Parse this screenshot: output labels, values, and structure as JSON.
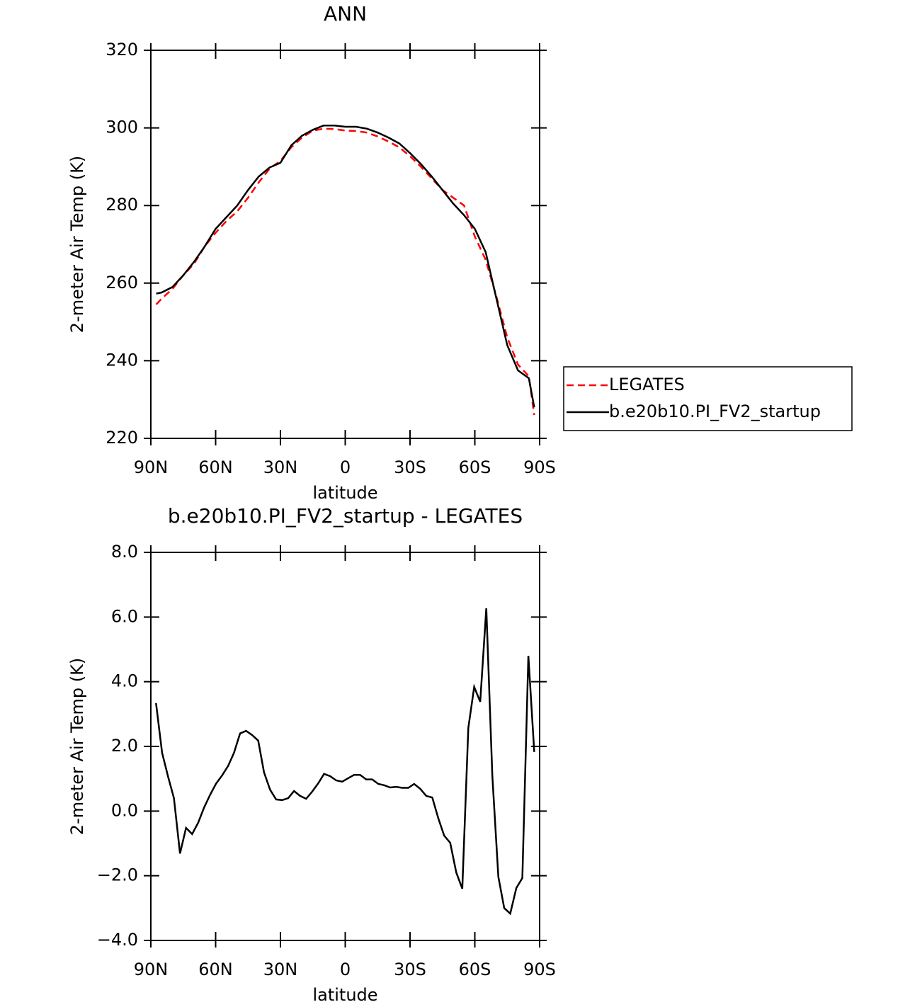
{
  "chart_data": [
    {
      "type": "line",
      "title": "ANN",
      "x_label": "latitude",
      "y_label": "2-meter Air Temp (K)",
      "x": [
        87.5,
        85,
        80,
        75,
        70,
        65,
        60,
        55,
        50,
        45,
        40,
        35,
        30,
        25,
        20,
        15,
        10,
        5,
        0,
        -5,
        -10,
        -15,
        -20,
        -25,
        -30,
        -35,
        -40,
        -45,
        -50,
        -55,
        -60,
        -65,
        -70,
        -75,
        -80,
        -85,
        -87.5
      ],
      "xlim": [
        90,
        -90
      ],
      "xticks": [
        {
          "value": 90,
          "label": "90N"
        },
        {
          "value": 60,
          "label": "60N"
        },
        {
          "value": 30,
          "label": "30N"
        },
        0,
        {
          "value": -30,
          "label": "30S"
        },
        {
          "value": -60,
          "label": "60S"
        },
        {
          "value": -90,
          "label": "90S"
        }
      ],
      "ylim": [
        220,
        320
      ],
      "yticks": [
        220,
        240,
        260,
        280,
        300,
        320
      ],
      "legend": "right",
      "series": [
        {
          "name": "LEGATES",
          "color": "#ff0000",
          "line_style": "dashed",
          "values": [
            254.5,
            256,
            258.5,
            262,
            265,
            269.5,
            273,
            276,
            278.5,
            282,
            286,
            289.5,
            291.5,
            295,
            297.5,
            299.3,
            299.8,
            299.7,
            299.3,
            299.2,
            298.8,
            297.8,
            296.5,
            295,
            292.7,
            290,
            287,
            284,
            282,
            280,
            272,
            266,
            256.5,
            246,
            239,
            236,
            226
          ]
        },
        {
          "name": "b.e20b10.PI_FV2_startup",
          "color": "#000000",
          "line_style": "solid",
          "values": [
            257.3,
            257.6,
            259,
            262,
            265.5,
            269.5,
            274,
            277,
            280,
            284,
            287.5,
            289.8,
            291,
            295.5,
            298,
            299.5,
            300.6,
            300.6,
            300.3,
            300.3,
            299.8,
            298.8,
            297.5,
            296,
            293.5,
            290.7,
            287.5,
            284,
            280.5,
            277.5,
            274,
            268,
            256,
            244,
            237.5,
            235.5,
            228
          ]
        }
      ]
    },
    {
      "type": "line",
      "title": "b.e20b10.PI_FV2_startup - LEGATES",
      "x_label": "latitude",
      "y_label": "2-meter Air Temp (K)",
      "x": [
        87.6,
        84.8,
        82.0,
        79.3,
        76.5,
        73.7,
        70.9,
        68.1,
        65.4,
        62.6,
        59.8,
        57.0,
        54.2,
        51.5,
        48.7,
        45.9,
        43.1,
        40.3,
        37.6,
        34.8,
        32.0,
        29.2,
        26.4,
        23.7,
        20.9,
        18.1,
        15.3,
        12.5,
        9.8,
        7.0,
        4.2,
        1.4,
        -1.4,
        -4.1,
        -6.9,
        -9.7,
        -12.5,
        -15.3,
        -18.0,
        -20.8,
        -23.6,
        -26.4,
        -29.2,
        -31.9,
        -34.7,
        -37.5,
        -40.3,
        -43.1,
        -45.8,
        -48.6,
        -51.4,
        -54.2,
        -57.0,
        -59.7,
        -62.5,
        -65.3,
        -68.1,
        -70.9,
        -73.6,
        -76.4,
        -79.2,
        -82.0,
        -84.8,
        -87.5
      ],
      "xlim": [
        90,
        -90
      ],
      "xticks": [
        {
          "value": 90,
          "label": "90N"
        },
        {
          "value": 60,
          "label": "60N"
        },
        {
          "value": 30,
          "label": "30N"
        },
        0,
        {
          "value": -30,
          "label": "30S"
        },
        {
          "value": -60,
          "label": "60S"
        },
        {
          "value": -90,
          "label": "90S"
        }
      ],
      "ylim": [
        -4,
        8
      ],
      "yticks": [
        {
          "value": -4,
          "label": "−4.0"
        },
        {
          "value": -2,
          "label": "−2.0"
        },
        {
          "value": 0,
          "label": "0.0"
        },
        {
          "value": 2,
          "label": "2.0"
        },
        {
          "value": 4,
          "label": "4.0"
        },
        {
          "value": 6,
          "label": "6.0"
        },
        {
          "value": 8,
          "label": "8.0"
        }
      ],
      "series": [
        {
          "color": "#000000",
          "line_style": "solid",
          "values": [
            3.34,
            1.8,
            1.06,
            0.4,
            -1.31,
            -0.52,
            -0.71,
            -0.36,
            0.1,
            0.5,
            0.85,
            1.1,
            1.4,
            1.8,
            2.4,
            2.48,
            2.35,
            2.18,
            1.2,
            0.66,
            0.36,
            0.34,
            0.4,
            0.62,
            0.47,
            0.38,
            0.6,
            0.86,
            1.15,
            1.08,
            0.95,
            0.91,
            1.02,
            1.12,
            1.12,
            0.98,
            0.98,
            0.84,
            0.8,
            0.73,
            0.75,
            0.72,
            0.72,
            0.84,
            0.69,
            0.47,
            0.42,
            -0.23,
            -0.76,
            -0.98,
            -1.9,
            -2.4,
            2.57,
            3.84,
            3.38,
            6.27,
            1.1,
            -2.03,
            -3.0,
            -3.17,
            -2.38,
            -2.07,
            4.8,
            1.83
          ]
        }
      ]
    }
  ]
}
